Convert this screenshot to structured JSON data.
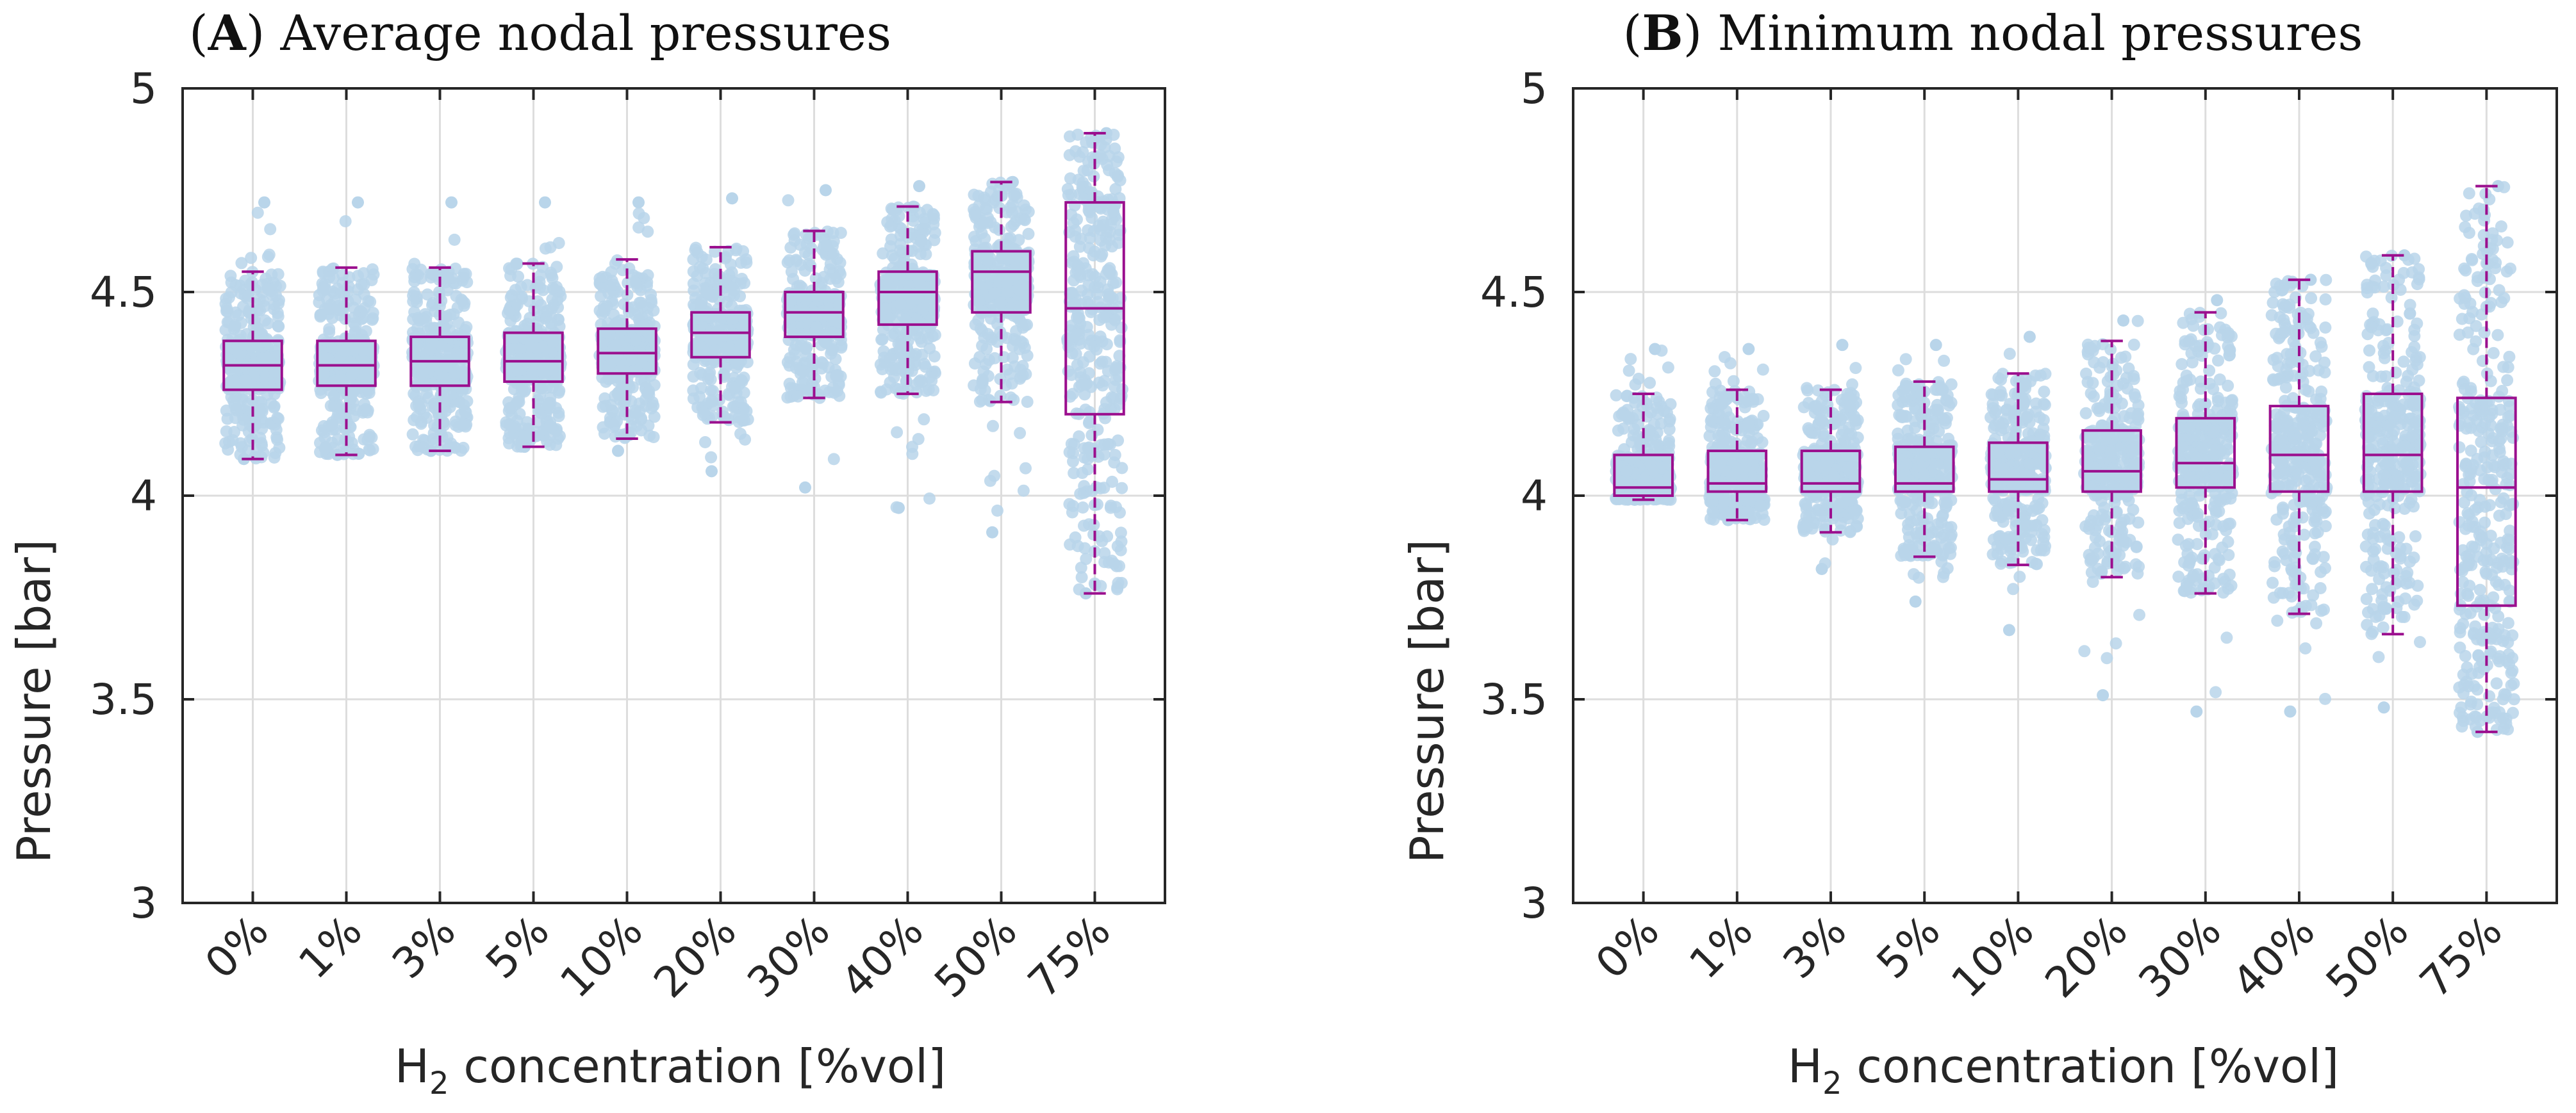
{
  "figure": {
    "colors": {
      "box": "#9B0F8E",
      "points": "#B9D5EA",
      "grid": "#DDDDDD",
      "axes": "#262626"
    }
  },
  "chart_data": [
    {
      "type": "box",
      "panel_letter": "A",
      "title": "Average nodal pressures",
      "xlabel_main": "H",
      "xlabel_sub": "2",
      "xlabel_rest": " concentration [%vol]",
      "ylabel": "Pressure [bar]",
      "ylim": [
        3,
        5
      ],
      "yticks": [
        "3",
        "3.5",
        "4",
        "4.5",
        "5"
      ],
      "grid": true,
      "categories": [
        "0%",
        "1%",
        "3%",
        "5%",
        "10%",
        "20%",
        "30%",
        "40%",
        "50%",
        "75%"
      ],
      "boxes": [
        {
          "whisker_low": 4.09,
          "q1": 4.26,
          "median": 4.32,
          "q3": 4.38,
          "whisker_high": 4.55,
          "point_min": 4.09,
          "point_max": 4.72
        },
        {
          "whisker_low": 4.1,
          "q1": 4.27,
          "median": 4.32,
          "q3": 4.38,
          "whisker_high": 4.56,
          "point_min": 4.1,
          "point_max": 4.72
        },
        {
          "whisker_low": 4.11,
          "q1": 4.27,
          "median": 4.33,
          "q3": 4.39,
          "whisker_high": 4.56,
          "point_min": 4.11,
          "point_max": 4.72
        },
        {
          "whisker_low": 4.12,
          "q1": 4.28,
          "median": 4.33,
          "q3": 4.4,
          "whisker_high": 4.57,
          "point_min": 4.12,
          "point_max": 4.72
        },
        {
          "whisker_low": 4.14,
          "q1": 4.3,
          "median": 4.35,
          "q3": 4.41,
          "whisker_high": 4.58,
          "point_min": 4.11,
          "point_max": 4.72
        },
        {
          "whisker_low": 4.18,
          "q1": 4.34,
          "median": 4.4,
          "q3": 4.45,
          "whisker_high": 4.61,
          "point_min": 4.06,
          "point_max": 4.73
        },
        {
          "whisker_low": 4.24,
          "q1": 4.39,
          "median": 4.45,
          "q3": 4.5,
          "whisker_high": 4.65,
          "point_min": 4.02,
          "point_max": 4.75
        },
        {
          "whisker_low": 4.25,
          "q1": 4.42,
          "median": 4.5,
          "q3": 4.55,
          "whisker_high": 4.71,
          "point_min": 3.97,
          "point_max": 4.76
        },
        {
          "whisker_low": 4.23,
          "q1": 4.45,
          "median": 4.55,
          "q3": 4.6,
          "whisker_high": 4.77,
          "point_min": 3.91,
          "point_max": 4.77
        },
        {
          "whisker_low": 3.76,
          "q1": 4.2,
          "median": 4.46,
          "q3": 4.72,
          "whisker_high": 4.89,
          "point_min": 3.76,
          "point_max": 4.89
        }
      ]
    },
    {
      "type": "box",
      "panel_letter": "B",
      "title": "Minimum nodal pressures",
      "xlabel_main": "H",
      "xlabel_sub": "2",
      "xlabel_rest": " concentration [%vol]",
      "ylabel": "Pressure [bar]",
      "ylim": [
        3,
        5
      ],
      "yticks": [
        "3",
        "3.5",
        "4",
        "4.5",
        "5"
      ],
      "grid": true,
      "categories": [
        "0%",
        "1%",
        "3%",
        "5%",
        "10%",
        "20%",
        "30%",
        "40%",
        "50%",
        "75%"
      ],
      "boxes": [
        {
          "whisker_low": 3.99,
          "q1": 4.0,
          "median": 4.02,
          "q3": 4.1,
          "whisker_high": 4.25,
          "point_min": 3.99,
          "point_max": 4.36
        },
        {
          "whisker_low": 3.94,
          "q1": 4.01,
          "median": 4.03,
          "q3": 4.11,
          "whisker_high": 4.26,
          "point_min": 3.94,
          "point_max": 4.36
        },
        {
          "whisker_low": 3.91,
          "q1": 4.01,
          "median": 4.03,
          "q3": 4.11,
          "whisker_high": 4.26,
          "point_min": 3.82,
          "point_max": 4.37
        },
        {
          "whisker_low": 3.85,
          "q1": 4.01,
          "median": 4.03,
          "q3": 4.12,
          "whisker_high": 4.28,
          "point_min": 3.74,
          "point_max": 4.37
        },
        {
          "whisker_low": 3.83,
          "q1": 4.01,
          "median": 4.04,
          "q3": 4.13,
          "whisker_high": 4.3,
          "point_min": 3.67,
          "point_max": 4.39
        },
        {
          "whisker_low": 3.8,
          "q1": 4.01,
          "median": 4.06,
          "q3": 4.16,
          "whisker_high": 4.38,
          "point_min": 3.51,
          "point_max": 4.43
        },
        {
          "whisker_low": 3.76,
          "q1": 4.02,
          "median": 4.08,
          "q3": 4.19,
          "whisker_high": 4.45,
          "point_min": 3.47,
          "point_max": 4.48
        },
        {
          "whisker_low": 3.71,
          "q1": 4.01,
          "median": 4.1,
          "q3": 4.22,
          "whisker_high": 4.53,
          "point_min": 3.47,
          "point_max": 4.53
        },
        {
          "whisker_low": 3.66,
          "q1": 4.01,
          "median": 4.1,
          "q3": 4.25,
          "whisker_high": 4.59,
          "point_min": 3.48,
          "point_max": 4.59
        },
        {
          "whisker_low": 3.42,
          "q1": 3.73,
          "median": 4.02,
          "q3": 4.24,
          "whisker_high": 4.76,
          "point_min": 3.42,
          "point_max": 4.76
        }
      ]
    }
  ]
}
